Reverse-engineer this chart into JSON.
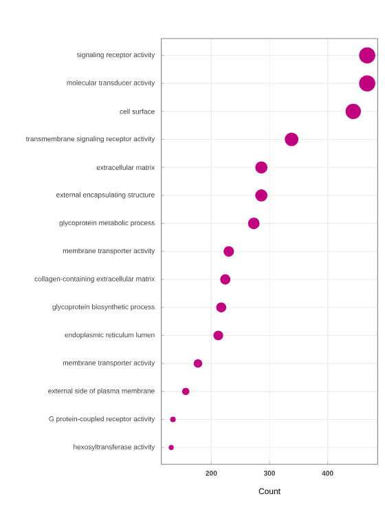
{
  "chart_data": {
    "type": "bubble",
    "orientation": "horizontal",
    "xlabel": "Count",
    "categories": [
      "signaling receptor activity",
      "molecular transducer activity",
      "cell surface",
      "transmembrane signaling receptor activity",
      "extracellular matrix",
      "external encapsulating structure",
      "glycoprotein metabolic process",
      "membrane transporter activity",
      "collagen-containing extracellular matrix",
      "glycoprotein biosynthetic process",
      "endoplasmic reticulum lumen",
      "membrane transporter activity",
      "external side of plasma membrane",
      "G protein-coupled receptor activity",
      "hexosyltransferase activity"
    ],
    "values": [
      468,
      468,
      444,
      338,
      286,
      286,
      273,
      230,
      224,
      217,
      212,
      177,
      156,
      134,
      131
    ],
    "sizes": [
      1,
      1,
      0.9,
      0.7,
      0.55,
      0.55,
      0.5,
      0.4,
      0.38,
      0.36,
      0.34,
      0.25,
      0.18,
      0.1,
      0.08
    ],
    "color": "#c0007f",
    "xlim": [
      114,
      486
    ],
    "xticks": [
      200,
      300,
      400
    ],
    "grid": true,
    "marker": "circle"
  }
}
